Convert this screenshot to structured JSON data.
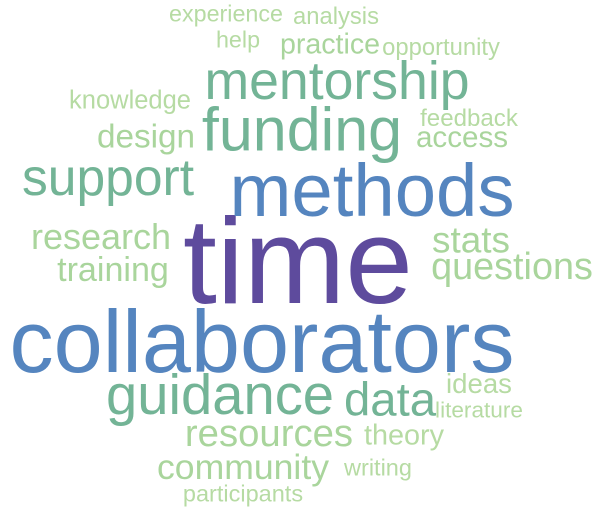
{
  "words": [
    {
      "text": "time",
      "color": "#5e4b9d"
    },
    {
      "text": "collaborators",
      "color": "#5585bf"
    },
    {
      "text": "methods",
      "color": "#5585bf"
    },
    {
      "text": "funding",
      "color": "#73b496"
    },
    {
      "text": "mentorship",
      "color": "#73b496"
    },
    {
      "text": "guidance",
      "color": "#73b496"
    },
    {
      "text": "support",
      "color": "#73b496"
    },
    {
      "text": "data",
      "color": "#73b496"
    },
    {
      "text": "questions",
      "color": "#a9d59c"
    },
    {
      "text": "resources",
      "color": "#a9d59c"
    },
    {
      "text": "community",
      "color": "#a9d59c"
    },
    {
      "text": "research",
      "color": "#a9d59c"
    },
    {
      "text": "training",
      "color": "#a9d59c"
    },
    {
      "text": "stats",
      "color": "#a9d59c"
    },
    {
      "text": "design",
      "color": "#a9d59c"
    },
    {
      "text": "access",
      "color": "#a9d59c"
    },
    {
      "text": "practice",
      "color": "#a9d59c"
    },
    {
      "text": "theory",
      "color": "#b6dba3"
    },
    {
      "text": "ideas",
      "color": "#b6dba3"
    },
    {
      "text": "feedback",
      "color": "#b6dba3"
    },
    {
      "text": "knowledge",
      "color": "#b6dba3"
    },
    {
      "text": "experience",
      "color": "#b6dba3"
    },
    {
      "text": "analysis",
      "color": "#b6dba3"
    },
    {
      "text": "opportunity",
      "color": "#b6dba3"
    },
    {
      "text": "help",
      "color": "#b6dba3"
    },
    {
      "text": "literature",
      "color": "#b6dba3"
    },
    {
      "text": "writing",
      "color": "#b6dba3"
    },
    {
      "text": "participants",
      "color": "#b6dba3"
    }
  ]
}
